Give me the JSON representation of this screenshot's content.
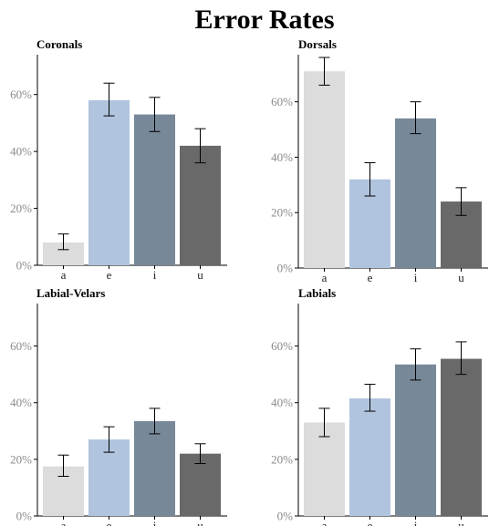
{
  "title": "Error Rates",
  "chart_data": [
    {
      "type": "bar",
      "title": "Coronals",
      "categories": [
        "a",
        "e",
        "i",
        "u"
      ],
      "values": [
        8,
        58,
        53,
        42
      ],
      "error_low": [
        5.5,
        52.5,
        47,
        36
      ],
      "error_high": [
        11,
        64,
        59,
        48
      ],
      "ylim": [
        0,
        74
      ],
      "yticks": [
        0,
        20,
        40,
        60
      ],
      "ytick_labels": [
        "0%",
        "20%",
        "40%",
        "60%"
      ],
      "colors": [
        "#dcdcdc",
        "#b0c4de",
        "#778899",
        "#696969"
      ]
    },
    {
      "type": "bar",
      "title": "Dorsals",
      "categories": [
        "a",
        "e",
        "i",
        "u"
      ],
      "values": [
        71,
        32,
        54,
        24
      ],
      "error_low": [
        66,
        26,
        48.5,
        19
      ],
      "error_high": [
        76,
        38,
        60,
        29
      ],
      "ylim": [
        0,
        77
      ],
      "yticks": [
        0,
        20,
        40,
        60
      ],
      "ytick_labels": [
        "0%",
        "20%",
        "40%",
        "60%"
      ],
      "colors": [
        "#dcdcdc",
        "#b0c4de",
        "#778899",
        "#696969"
      ]
    },
    {
      "type": "bar",
      "title": "Labial-Velars",
      "categories": [
        "a",
        "e",
        "i",
        "u"
      ],
      "values": [
        17.5,
        27,
        33.5,
        22
      ],
      "error_low": [
        14,
        22.5,
        29,
        18.5
      ],
      "error_high": [
        21.5,
        31.5,
        38,
        25.5
      ],
      "ylim": [
        0,
        75
      ],
      "yticks": [
        0,
        20,
        40,
        60
      ],
      "ytick_labels": [
        "0%",
        "20%",
        "40%",
        "60%"
      ],
      "colors": [
        "#dcdcdc",
        "#b0c4de",
        "#778899",
        "#696969"
      ]
    },
    {
      "type": "bar",
      "title": "Labials",
      "categories": [
        "a",
        "e",
        "i",
        "u"
      ],
      "values": [
        33,
        41.5,
        53.5,
        55.5
      ],
      "error_low": [
        28,
        37,
        48,
        50
      ],
      "error_high": [
        38,
        46.5,
        59,
        61.5
      ],
      "ylim": [
        0,
        75
      ],
      "yticks": [
        0,
        20,
        40,
        60
      ],
      "ytick_labels": [
        "0%",
        "20%",
        "40%",
        "60%"
      ],
      "colors": [
        "#dcdcdc",
        "#b0c4de",
        "#778899",
        "#696969"
      ]
    }
  ]
}
